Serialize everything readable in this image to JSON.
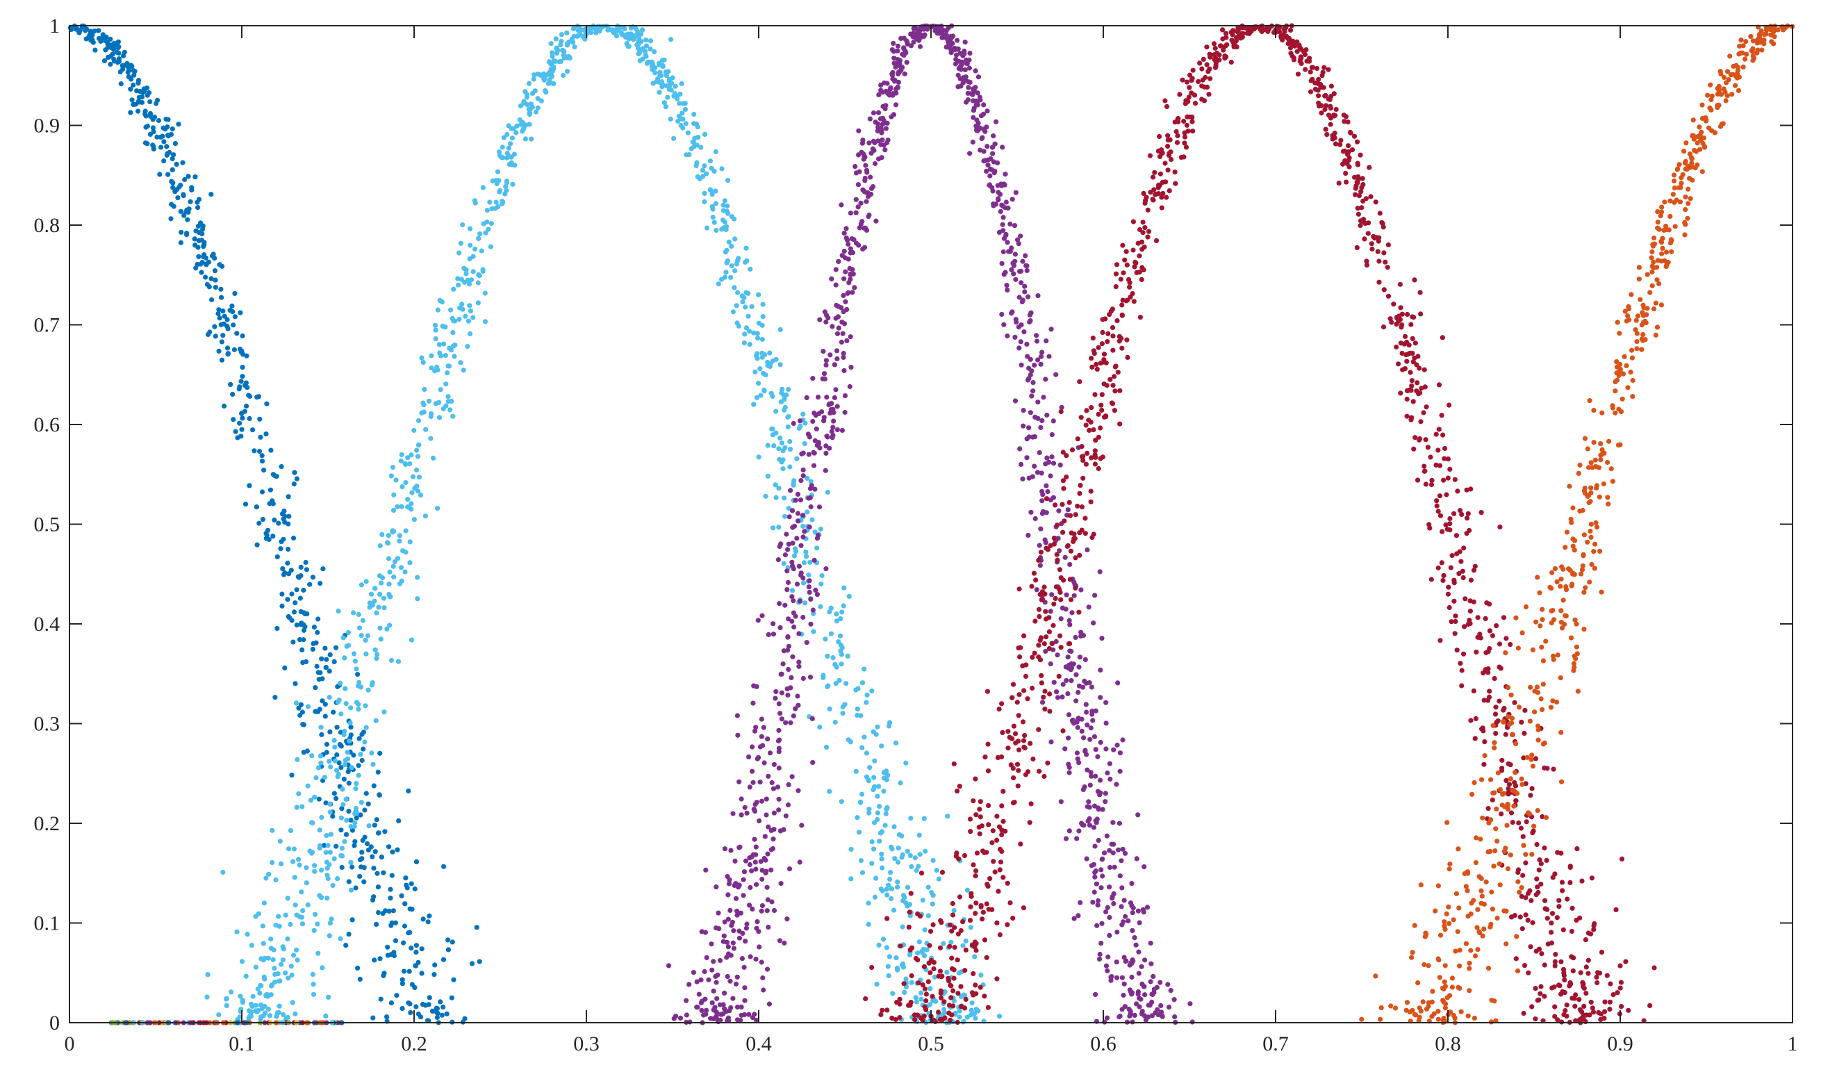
{
  "chart_data": {
    "type": "scatter",
    "title": "",
    "xlabel": "",
    "ylabel": "",
    "xlim": [
      0,
      1
    ],
    "ylim": [
      0,
      1
    ],
    "grid": false,
    "legend": "none",
    "x_ticks": [
      "0",
      "0.1",
      "0.2",
      "0.3",
      "0.4",
      "0.5",
      "0.6",
      "0.7",
      "0.8",
      "0.9",
      "1"
    ],
    "y_ticks": [
      "0",
      "0.1",
      "0.2",
      "0.3",
      "0.4",
      "0.5",
      "0.6",
      "0.7",
      "0.8",
      "0.9",
      "1"
    ],
    "series": [
      {
        "color": "#0072BD",
        "peak_x": 0.0,
        "peak_y": 1.0,
        "half_width": 0.22,
        "points_per_side": 650,
        "sample_points": [
          [
            0.0,
            1.0
          ],
          [
            0.02,
            0.98
          ],
          [
            0.05,
            0.92
          ],
          [
            0.08,
            0.8
          ],
          [
            0.1,
            0.68
          ],
          [
            0.12,
            0.55
          ],
          [
            0.15,
            0.42
          ],
          [
            0.18,
            0.28
          ],
          [
            0.2,
            0.2
          ],
          [
            0.23,
            0.1
          ],
          [
            0.27,
            0.03
          ]
        ]
      },
      {
        "color": "#4DBEEE",
        "peak_x": 0.31,
        "peak_y": 1.0,
        "half_width": 0.21,
        "points_per_side": 650,
        "sample_points": [
          [
            0.12,
            0.02
          ],
          [
            0.15,
            0.1
          ],
          [
            0.2,
            0.28
          ],
          [
            0.25,
            0.6
          ],
          [
            0.28,
            0.85
          ],
          [
            0.31,
            1.0
          ],
          [
            0.34,
            0.86
          ],
          [
            0.37,
            0.65
          ],
          [
            0.4,
            0.45
          ],
          [
            0.43,
            0.22
          ],
          [
            0.46,
            0.1
          ],
          [
            0.51,
            0.01
          ]
        ]
      },
      {
        "color": "#7E2F8E",
        "peak_x": 0.5,
        "peak_y": 1.0,
        "half_width": 0.13,
        "points_per_side": 650,
        "sample_points": [
          [
            0.37,
            0.0
          ],
          [
            0.4,
            0.08
          ],
          [
            0.43,
            0.25
          ],
          [
            0.46,
            0.55
          ],
          [
            0.48,
            0.82
          ],
          [
            0.5,
            1.0
          ],
          [
            0.52,
            0.82
          ],
          [
            0.54,
            0.55
          ],
          [
            0.57,
            0.25
          ],
          [
            0.6,
            0.08
          ],
          [
            0.62,
            0.0
          ]
        ]
      },
      {
        "color": "#A2142F",
        "peak_x": 0.69,
        "peak_y": 1.0,
        "half_width": 0.2,
        "points_per_side": 650,
        "sample_points": [
          [
            0.5,
            0.01
          ],
          [
            0.55,
            0.12
          ],
          [
            0.6,
            0.35
          ],
          [
            0.64,
            0.62
          ],
          [
            0.67,
            0.88
          ],
          [
            0.69,
            1.0
          ],
          [
            0.72,
            0.88
          ],
          [
            0.75,
            0.65
          ],
          [
            0.78,
            0.42
          ],
          [
            0.82,
            0.2
          ],
          [
            0.86,
            0.06
          ],
          [
            0.9,
            0.0
          ]
        ]
      },
      {
        "color": "#D95319",
        "peak_x": 1.0,
        "peak_y": 1.0,
        "half_width": 0.22,
        "points_per_side": 650,
        "sample_points": [
          [
            0.72,
            0.03
          ],
          [
            0.76,
            0.12
          ],
          [
            0.8,
            0.22
          ],
          [
            0.84,
            0.35
          ],
          [
            0.88,
            0.55
          ],
          [
            0.92,
            0.72
          ],
          [
            0.95,
            0.86
          ],
          [
            0.98,
            0.96
          ],
          [
            1.0,
            1.0
          ]
        ]
      }
    ],
    "baseline_points": {
      "x_range": [
        0.02,
        0.16
      ],
      "y": 0.0,
      "colors": [
        "#0072BD",
        "#4DBEEE",
        "#7E2F8E",
        "#A2142F",
        "#D95319",
        "#EDB120",
        "#77AC30"
      ]
    }
  }
}
